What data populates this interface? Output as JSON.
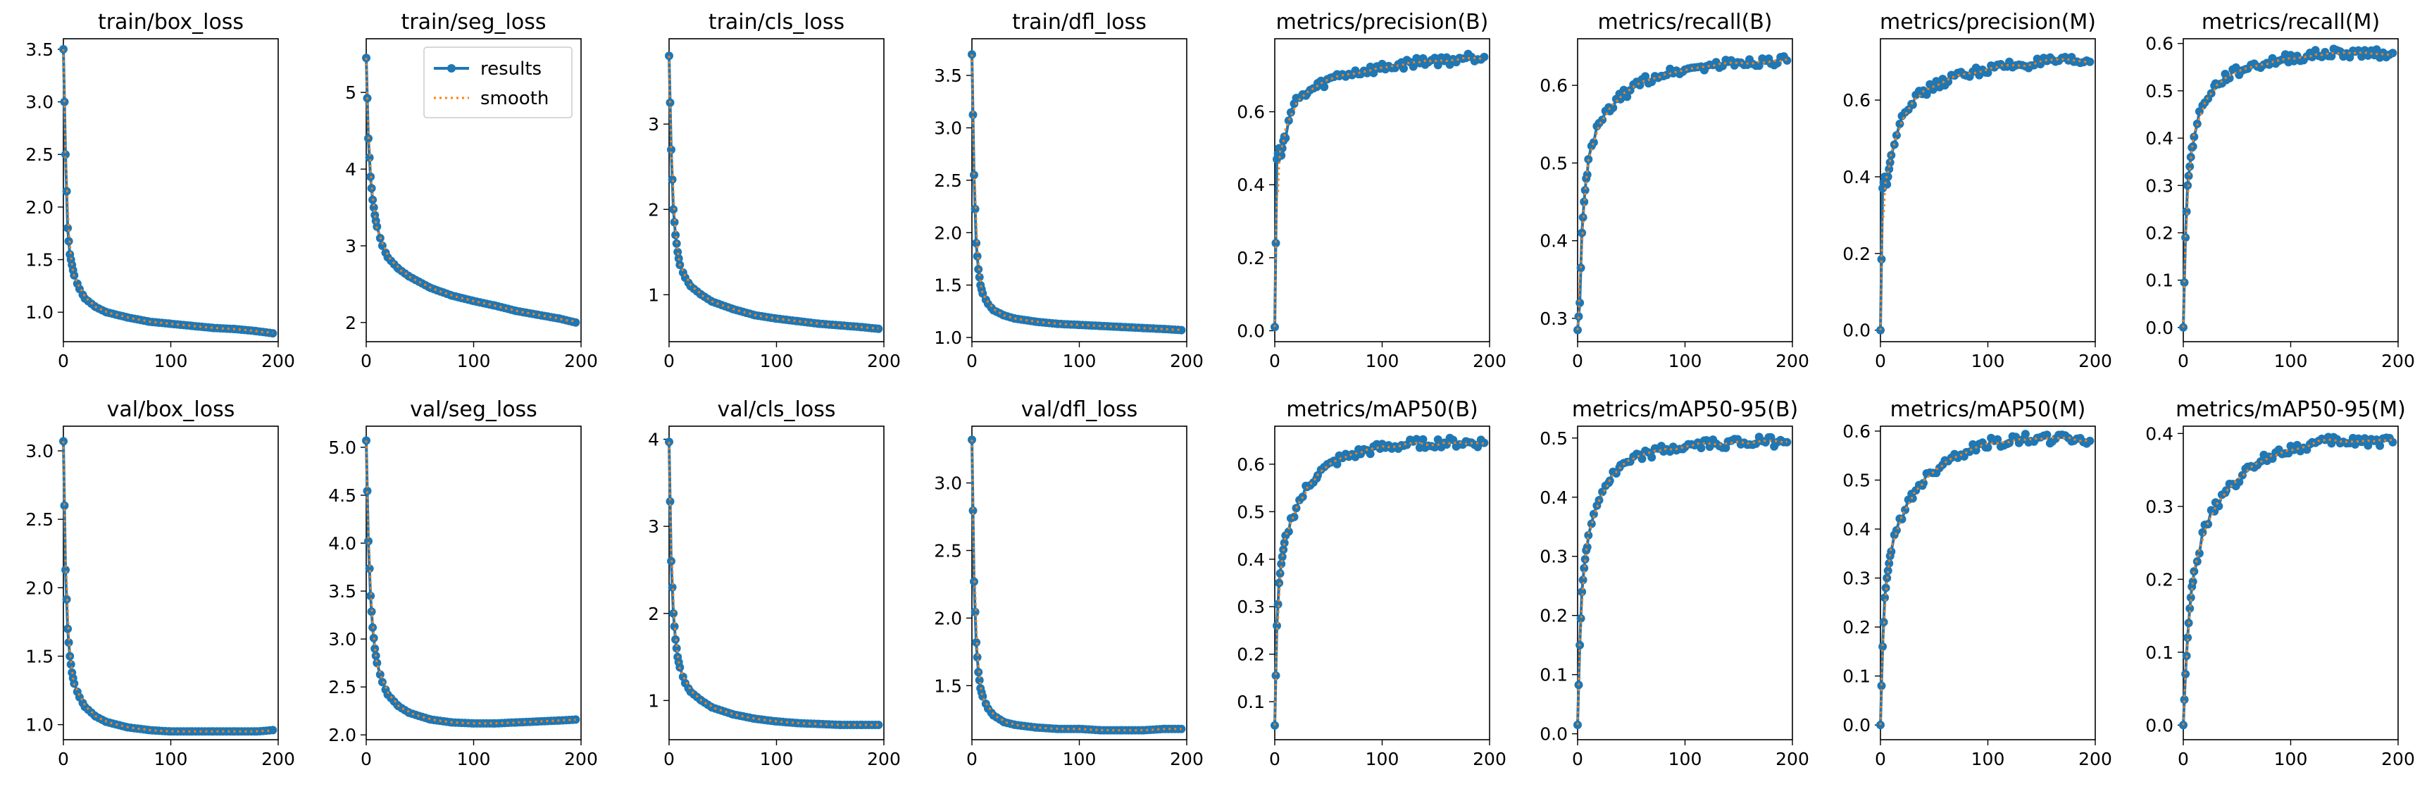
{
  "colors": {
    "results": "#1f77b4",
    "smooth": "#ff7f0e"
  },
  "legend": {
    "results_label": "results",
    "smooth_label": "smooth",
    "placement": "upper-right of train/seg_loss"
  },
  "chart_data": [
    {
      "type": "line",
      "title": "train/box_loss",
      "xlim": [
        0,
        200
      ],
      "ylim": [
        0.72,
        3.6
      ],
      "xticks": [
        0,
        100,
        200
      ],
      "yticks": [
        1.0,
        1.5,
        2.0,
        2.5,
        3.0,
        3.5
      ],
      "ytick_labels": [
        "1.0",
        "1.5",
        "2.0",
        "2.5",
        "3.0",
        "3.5"
      ],
      "x": [
        0,
        2,
        4,
        6,
        8,
        10,
        15,
        20,
        30,
        40,
        60,
        80,
        100,
        120,
        140,
        160,
        180,
        195
      ],
      "series": [
        {
          "name": "results",
          "values": [
            3.5,
            2.5,
            1.8,
            1.55,
            1.45,
            1.35,
            1.22,
            1.13,
            1.05,
            1.0,
            0.95,
            0.91,
            0.89,
            0.87,
            0.85,
            0.84,
            0.82,
            0.8
          ]
        }
      ]
    },
    {
      "type": "line",
      "title": "train/seg_loss",
      "xlim": [
        0,
        200
      ],
      "ylim": [
        1.75,
        5.7
      ],
      "xticks": [
        0,
        100,
        200
      ],
      "yticks": [
        2,
        3,
        4,
        5
      ],
      "ytick_labels": [
        "2",
        "3",
        "4",
        "5"
      ],
      "x": [
        0,
        2,
        4,
        6,
        8,
        10,
        15,
        20,
        30,
        40,
        60,
        80,
        100,
        120,
        140,
        160,
        180,
        195
      ],
      "series": [
        {
          "name": "results",
          "values": [
            5.45,
            4.4,
            3.9,
            3.6,
            3.4,
            3.25,
            3.0,
            2.85,
            2.7,
            2.6,
            2.45,
            2.35,
            2.28,
            2.22,
            2.15,
            2.1,
            2.05,
            2.0
          ]
        }
      ]
    },
    {
      "type": "line",
      "title": "train/cls_loss",
      "xlim": [
        0,
        200
      ],
      "ylim": [
        0.45,
        4.0
      ],
      "xticks": [
        0,
        100,
        200
      ],
      "yticks": [
        1,
        2,
        3
      ],
      "ytick_labels": [
        "1",
        "2",
        "3"
      ],
      "x": [
        0,
        2,
        4,
        6,
        8,
        10,
        15,
        20,
        30,
        40,
        60,
        80,
        100,
        120,
        140,
        160,
        180,
        195
      ],
      "series": [
        {
          "name": "results",
          "values": [
            3.8,
            2.7,
            2.0,
            1.7,
            1.5,
            1.35,
            1.2,
            1.1,
            1.0,
            0.92,
            0.83,
            0.76,
            0.72,
            0.69,
            0.66,
            0.64,
            0.62,
            0.6
          ]
        }
      ]
    },
    {
      "type": "line",
      "title": "train/dfl_loss",
      "xlim": [
        0,
        200
      ],
      "ylim": [
        0.96,
        3.85
      ],
      "xticks": [
        0,
        100,
        200
      ],
      "yticks": [
        1.0,
        1.5,
        2.0,
        2.5,
        3.0,
        3.5
      ],
      "ytick_labels": [
        "1.0",
        "1.5",
        "2.0",
        "2.5",
        "3.0",
        "3.5"
      ],
      "x": [
        0,
        2,
        4,
        6,
        8,
        10,
        15,
        20,
        30,
        40,
        60,
        80,
        100,
        120,
        140,
        160,
        180,
        195
      ],
      "series": [
        {
          "name": "results",
          "values": [
            3.7,
            2.55,
            1.9,
            1.65,
            1.5,
            1.42,
            1.32,
            1.26,
            1.21,
            1.18,
            1.15,
            1.13,
            1.12,
            1.11,
            1.1,
            1.09,
            1.08,
            1.07
          ]
        }
      ]
    },
    {
      "type": "line",
      "title": "metrics/precision(B)",
      "xlim": [
        0,
        200
      ],
      "ylim": [
        -0.03,
        0.8
      ],
      "xticks": [
        0,
        100,
        200
      ],
      "yticks": [
        0.0,
        0.2,
        0.4,
        0.6
      ],
      "ytick_labels": [
        "0.0",
        "0.2",
        "0.4",
        "0.6"
      ],
      "x": [
        0,
        2,
        4,
        6,
        8,
        10,
        15,
        20,
        30,
        40,
        60,
        80,
        100,
        120,
        140,
        160,
        180,
        195
      ],
      "series": [
        {
          "name": "results",
          "values": [
            0.01,
            0.47,
            0.5,
            0.48,
            0.52,
            0.54,
            0.6,
            0.63,
            0.65,
            0.67,
            0.7,
            0.71,
            0.72,
            0.73,
            0.74,
            0.74,
            0.75,
            0.75
          ]
        }
      ]
    },
    {
      "type": "line",
      "title": "metrics/recall(B)",
      "xlim": [
        0,
        200
      ],
      "ylim": [
        0.27,
        0.66
      ],
      "xticks": [
        0,
        100,
        200
      ],
      "yticks": [
        0.3,
        0.4,
        0.5,
        0.6
      ],
      "ytick_labels": [
        "0.3",
        "0.4",
        "0.5",
        "0.6"
      ],
      "x": [
        0,
        2,
        4,
        6,
        8,
        10,
        15,
        20,
        30,
        40,
        60,
        80,
        100,
        120,
        140,
        160,
        180,
        195
      ],
      "series": [
        {
          "name": "results",
          "values": [
            0.285,
            0.32,
            0.41,
            0.45,
            0.48,
            0.5,
            0.53,
            0.55,
            0.57,
            0.585,
            0.605,
            0.615,
            0.62,
            0.625,
            0.628,
            0.63,
            0.632,
            0.632
          ]
        }
      ]
    },
    {
      "type": "line",
      "title": "metrics/precision(M)",
      "xlim": [
        0,
        200
      ],
      "ylim": [
        -0.03,
        0.76
      ],
      "xticks": [
        0,
        100,
        200
      ],
      "yticks": [
        0.0,
        0.2,
        0.4,
        0.6
      ],
      "ytick_labels": [
        "0.0",
        "0.2",
        "0.4",
        "0.6"
      ],
      "x": [
        0,
        2,
        4,
        6,
        8,
        10,
        15,
        20,
        30,
        40,
        60,
        80,
        100,
        120,
        140,
        160,
        180,
        195
      ],
      "series": [
        {
          "name": "results",
          "values": [
            0.0,
            0.37,
            0.4,
            0.38,
            0.42,
            0.45,
            0.52,
            0.56,
            0.6,
            0.62,
            0.65,
            0.67,
            0.68,
            0.69,
            0.695,
            0.7,
            0.7,
            0.7
          ]
        }
      ]
    },
    {
      "type": "line",
      "title": "metrics/recall(M)",
      "xlim": [
        0,
        200
      ],
      "ylim": [
        -0.03,
        0.61
      ],
      "xticks": [
        0,
        100,
        200
      ],
      "yticks": [
        0.0,
        0.1,
        0.2,
        0.3,
        0.4,
        0.5,
        0.6
      ],
      "ytick_labels": [
        "0.0",
        "0.1",
        "0.2",
        "0.3",
        "0.4",
        "0.5",
        "0.6"
      ],
      "x": [
        0,
        2,
        4,
        6,
        8,
        10,
        15,
        20,
        30,
        40,
        60,
        80,
        100,
        120,
        140,
        160,
        180,
        195
      ],
      "series": [
        {
          "name": "results",
          "values": [
            0.0,
            0.19,
            0.3,
            0.34,
            0.38,
            0.4,
            0.45,
            0.48,
            0.51,
            0.53,
            0.55,
            0.56,
            0.57,
            0.575,
            0.58,
            0.58,
            0.58,
            0.58
          ]
        }
      ]
    },
    {
      "type": "line",
      "title": "val/box_loss",
      "xlim": [
        0,
        200
      ],
      "ylim": [
        0.89,
        3.18
      ],
      "xticks": [
        0,
        100,
        200
      ],
      "yticks": [
        1.0,
        1.5,
        2.0,
        2.5,
        3.0
      ],
      "ytick_labels": [
        "1.0",
        "1.5",
        "2.0",
        "2.5",
        "3.0"
      ],
      "x": [
        0,
        2,
        4,
        6,
        8,
        10,
        15,
        20,
        30,
        40,
        60,
        80,
        100,
        120,
        140,
        160,
        180,
        195
      ],
      "series": [
        {
          "name": "results",
          "values": [
            3.07,
            2.13,
            1.7,
            1.5,
            1.38,
            1.3,
            1.2,
            1.13,
            1.06,
            1.02,
            0.98,
            0.96,
            0.95,
            0.95,
            0.95,
            0.95,
            0.95,
            0.96
          ]
        }
      ]
    },
    {
      "type": "line",
      "title": "val/seg_loss",
      "xlim": [
        0,
        200
      ],
      "ylim": [
        1.95,
        5.22
      ],
      "xticks": [
        0,
        100,
        200
      ],
      "yticks": [
        2.0,
        2.5,
        3.0,
        3.5,
        4.0,
        4.5,
        5.0
      ],
      "ytick_labels": [
        "2.0",
        "2.5",
        "3.0",
        "3.5",
        "4.0",
        "4.5",
        "5.0"
      ],
      "x": [
        0,
        2,
        4,
        6,
        8,
        10,
        15,
        20,
        30,
        40,
        60,
        80,
        100,
        120,
        140,
        160,
        180,
        195
      ],
      "series": [
        {
          "name": "results",
          "values": [
            5.07,
            4.02,
            3.45,
            3.12,
            2.9,
            2.75,
            2.55,
            2.42,
            2.3,
            2.23,
            2.16,
            2.13,
            2.12,
            2.12,
            2.13,
            2.14,
            2.15,
            2.16
          ]
        }
      ]
    },
    {
      "type": "line",
      "title": "val/cls_loss",
      "xlim": [
        0,
        200
      ],
      "ylim": [
        0.55,
        4.15
      ],
      "xticks": [
        0,
        100,
        200
      ],
      "yticks": [
        1,
        2,
        3,
        4
      ],
      "ytick_labels": [
        "1",
        "2",
        "3",
        "4"
      ],
      "x": [
        0,
        2,
        4,
        6,
        8,
        10,
        15,
        20,
        30,
        40,
        60,
        80,
        100,
        120,
        140,
        160,
        180,
        195
      ],
      "series": [
        {
          "name": "results",
          "values": [
            3.97,
            2.6,
            2.0,
            1.7,
            1.5,
            1.38,
            1.2,
            1.1,
            1.0,
            0.92,
            0.84,
            0.79,
            0.76,
            0.74,
            0.73,
            0.72,
            0.72,
            0.72
          ]
        }
      ]
    },
    {
      "type": "line",
      "title": "val/dfl_loss",
      "xlim": [
        0,
        200
      ],
      "ylim": [
        1.1,
        3.42
      ],
      "xticks": [
        0,
        100,
        200
      ],
      "yticks": [
        1.5,
        2.0,
        2.5,
        3.0
      ],
      "ytick_labels": [
        "1.5",
        "2.0",
        "2.5",
        "3.0"
      ],
      "x": [
        0,
        2,
        4,
        6,
        8,
        10,
        15,
        20,
        30,
        40,
        60,
        80,
        100,
        120,
        140,
        160,
        180,
        195
      ],
      "series": [
        {
          "name": "results",
          "values": [
            3.32,
            2.27,
            1.82,
            1.6,
            1.48,
            1.42,
            1.33,
            1.28,
            1.23,
            1.21,
            1.19,
            1.18,
            1.18,
            1.17,
            1.17,
            1.17,
            1.18,
            1.18
          ]
        }
      ]
    },
    {
      "type": "line",
      "title": "metrics/mAP50(B)",
      "xlim": [
        0,
        200
      ],
      "ylim": [
        0.02,
        0.68
      ],
      "xticks": [
        0,
        100,
        200
      ],
      "yticks": [
        0.1,
        0.2,
        0.3,
        0.4,
        0.5,
        0.6
      ],
      "ytick_labels": [
        "0.1",
        "0.2",
        "0.3",
        "0.4",
        "0.5",
        "0.6"
      ],
      "x": [
        0,
        2,
        4,
        6,
        8,
        10,
        15,
        20,
        30,
        40,
        60,
        80,
        100,
        120,
        140,
        160,
        180,
        195
      ],
      "series": [
        {
          "name": "results",
          "values": [
            0.05,
            0.26,
            0.35,
            0.39,
            0.42,
            0.44,
            0.48,
            0.51,
            0.55,
            0.58,
            0.61,
            0.625,
            0.635,
            0.64,
            0.645,
            0.645,
            0.645,
            0.645
          ]
        }
      ]
    },
    {
      "type": "line",
      "title": "metrics/mAP50-95(B)",
      "xlim": [
        0,
        200
      ],
      "ylim": [
        -0.01,
        0.52
      ],
      "xticks": [
        0,
        100,
        200
      ],
      "yticks": [
        0.0,
        0.1,
        0.2,
        0.3,
        0.4,
        0.5
      ],
      "ytick_labels": [
        "0.0",
        "0.1",
        "0.2",
        "0.3",
        "0.4",
        "0.5"
      ],
      "x": [
        0,
        2,
        4,
        6,
        8,
        10,
        15,
        20,
        30,
        40,
        60,
        80,
        100,
        120,
        140,
        160,
        180,
        195
      ],
      "series": [
        {
          "name": "results",
          "values": [
            0.015,
            0.15,
            0.24,
            0.28,
            0.31,
            0.33,
            0.37,
            0.4,
            0.43,
            0.45,
            0.47,
            0.48,
            0.485,
            0.49,
            0.492,
            0.493,
            0.494,
            0.493
          ]
        }
      ]
    },
    {
      "type": "line",
      "title": "metrics/mAP50(M)",
      "xlim": [
        0,
        200
      ],
      "ylim": [
        -0.03,
        0.61
      ],
      "xticks": [
        0,
        100,
        200
      ],
      "yticks": [
        0.0,
        0.1,
        0.2,
        0.3,
        0.4,
        0.5,
        0.6
      ],
      "ytick_labels": [
        "0.0",
        "0.1",
        "0.2",
        "0.3",
        "0.4",
        "0.5",
        "0.6"
      ],
      "x": [
        0,
        2,
        4,
        6,
        8,
        10,
        15,
        20,
        30,
        40,
        60,
        80,
        100,
        120,
        140,
        160,
        180,
        195
      ],
      "series": [
        {
          "name": "results",
          "values": [
            0.0,
            0.16,
            0.26,
            0.3,
            0.33,
            0.35,
            0.4,
            0.43,
            0.47,
            0.5,
            0.54,
            0.56,
            0.575,
            0.58,
            0.585,
            0.585,
            0.585,
            0.58
          ]
        }
      ]
    },
    {
      "type": "line",
      "title": "metrics/mAP50-95(M)",
      "xlim": [
        0,
        200
      ],
      "ylim": [
        -0.02,
        0.41
      ],
      "xticks": [
        0,
        100,
        200
      ],
      "yticks": [
        0.0,
        0.1,
        0.2,
        0.3,
        0.4
      ],
      "ytick_labels": [
        "0.0",
        "0.1",
        "0.2",
        "0.3",
        "0.4"
      ],
      "x": [
        0,
        2,
        4,
        6,
        8,
        10,
        15,
        20,
        30,
        40,
        60,
        80,
        100,
        120,
        140,
        160,
        180,
        195
      ],
      "series": [
        {
          "name": "results",
          "values": [
            0.0,
            0.07,
            0.12,
            0.16,
            0.19,
            0.21,
            0.24,
            0.27,
            0.3,
            0.32,
            0.35,
            0.37,
            0.38,
            0.385,
            0.39,
            0.39,
            0.39,
            0.388
          ]
        }
      ]
    }
  ]
}
